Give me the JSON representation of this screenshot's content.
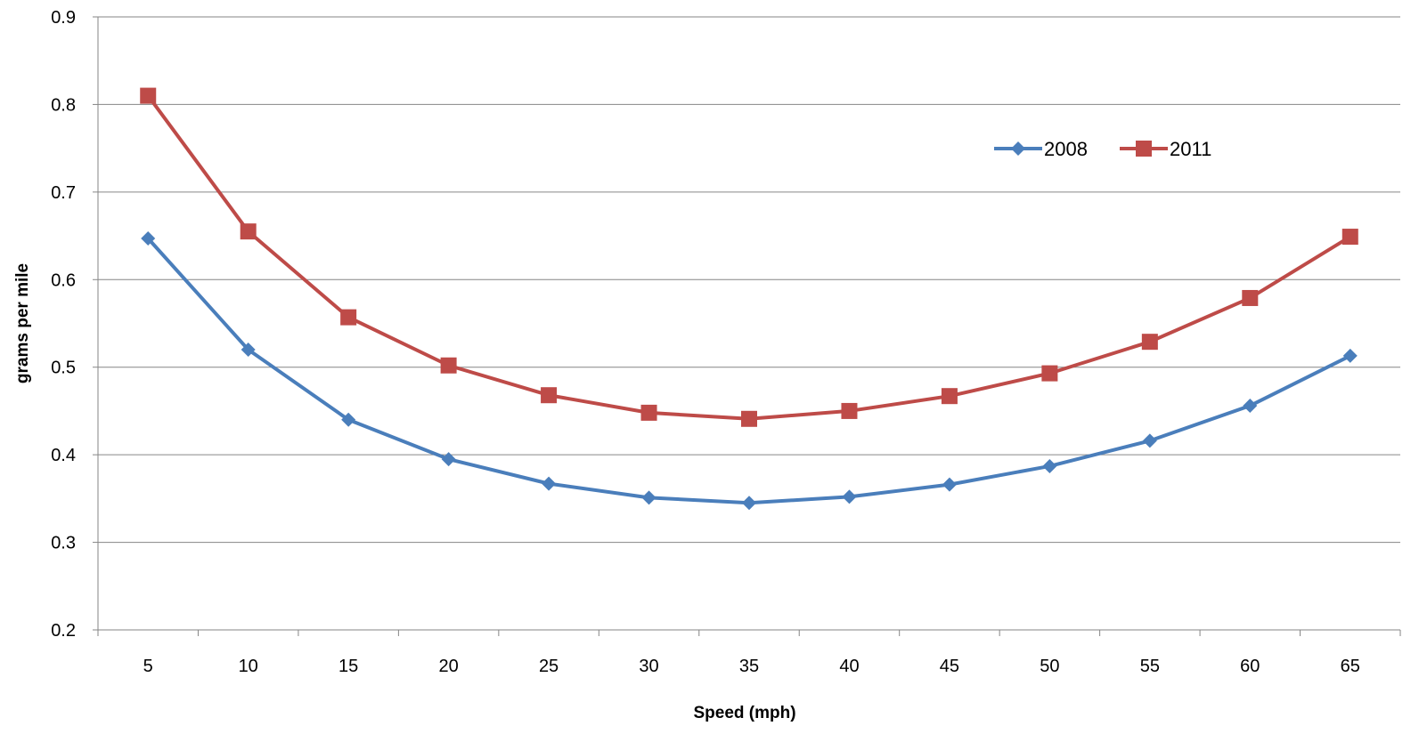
{
  "chart_data": {
    "type": "line",
    "title": "",
    "xlabel": "Speed (mph)",
    "ylabel": "grams per mile",
    "categories": [
      "5",
      "10",
      "15",
      "20",
      "25",
      "30",
      "35",
      "40",
      "45",
      "50",
      "55",
      "60",
      "65"
    ],
    "ylim": [
      0.2,
      0.9
    ],
    "yticks": [
      "0.2",
      "0.3",
      "0.4",
      "0.5",
      "0.6",
      "0.7",
      "0.8",
      "0.9"
    ],
    "grid": "horizontal",
    "legend_position": "top-right",
    "series": [
      {
        "name": "2008",
        "color": "#4a7ebb",
        "marker": "diamond",
        "values": [
          0.647,
          0.52,
          0.44,
          0.395,
          0.367,
          0.351,
          0.345,
          0.352,
          0.366,
          0.387,
          0.416,
          0.456,
          0.513
        ]
      },
      {
        "name": "2011",
        "color": "#be4b48",
        "marker": "square",
        "values": [
          0.81,
          0.655,
          0.557,
          0.502,
          0.468,
          0.448,
          0.441,
          0.45,
          0.467,
          0.493,
          0.529,
          0.579,
          0.649
        ]
      }
    ]
  }
}
